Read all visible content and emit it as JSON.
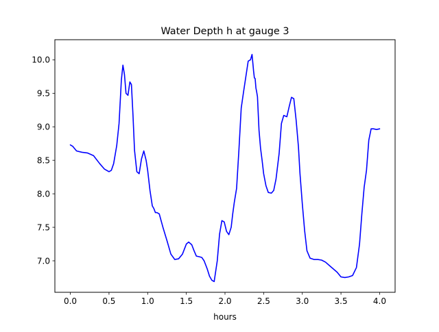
{
  "chart_data": {
    "type": "line",
    "title": "Water Depth h at gauge 3",
    "xlabel": "hours",
    "ylabel": "",
    "xlim": [
      -0.2,
      4.2
    ],
    "ylim": [
      6.53,
      10.3
    ],
    "x_ticks": [
      0.0,
      0.5,
      1.0,
      1.5,
      2.0,
      2.5,
      3.0,
      3.5,
      4.0
    ],
    "x_tick_labels": [
      "0.0",
      "0.5",
      "1.0",
      "1.5",
      "2.0",
      "2.5",
      "3.0",
      "3.5",
      "4.0"
    ],
    "y_ticks": [
      7.0,
      7.5,
      8.0,
      8.5,
      9.0,
      9.5,
      10.0
    ],
    "y_tick_labels": [
      "7.0",
      "7.5",
      "8.0",
      "8.5",
      "9.0",
      "9.5",
      "10.0"
    ],
    "grid": false,
    "legend": "none",
    "series": [
      {
        "color": "#0000ff",
        "x": [
          0.0,
          0.03,
          0.08,
          0.15,
          0.22,
          0.3,
          0.38,
          0.44,
          0.5,
          0.53,
          0.56,
          0.6,
          0.63,
          0.66,
          0.68,
          0.7,
          0.72,
          0.745,
          0.77,
          0.79,
          0.81,
          0.83,
          0.86,
          0.89,
          0.92,
          0.95,
          0.98,
          1.0,
          1.03,
          1.06,
          1.08,
          1.1,
          1.12,
          1.15,
          1.2,
          1.25,
          1.3,
          1.35,
          1.4,
          1.45,
          1.5,
          1.53,
          1.57,
          1.6,
          1.63,
          1.67,
          1.7,
          1.73,
          1.77,
          1.8,
          1.83,
          1.86,
          1.9,
          1.93,
          1.96,
          1.99,
          2.02,
          2.05,
          2.08,
          2.1,
          2.12,
          2.15,
          2.18,
          2.21,
          2.24,
          2.27,
          2.3,
          2.33,
          2.35,
          2.37,
          2.38,
          2.39,
          2.4,
          2.41,
          2.42,
          2.43,
          2.44,
          2.46,
          2.48,
          2.5,
          2.53,
          2.56,
          2.6,
          2.63,
          2.66,
          2.7,
          2.73,
          2.76,
          2.8,
          2.83,
          2.86,
          2.89,
          2.92,
          2.95,
          2.97,
          3.0,
          3.03,
          3.06,
          3.1,
          3.15,
          3.2,
          3.25,
          3.3,
          3.35,
          3.4,
          3.45,
          3.5,
          3.55,
          3.6,
          3.65,
          3.7,
          3.74,
          3.77,
          3.8,
          3.83,
          3.86,
          3.89,
          3.92,
          3.96,
          4.0
        ],
        "values": [
          8.73,
          8.71,
          8.64,
          8.62,
          8.61,
          8.57,
          8.45,
          8.37,
          8.33,
          8.35,
          8.45,
          8.72,
          9.05,
          9.7,
          9.92,
          9.78,
          9.5,
          9.47,
          9.67,
          9.63,
          9.18,
          8.65,
          8.33,
          8.3,
          8.52,
          8.64,
          8.5,
          8.35,
          8.05,
          7.82,
          7.78,
          7.72,
          7.72,
          7.7,
          7.49,
          7.3,
          7.1,
          7.02,
          7.03,
          7.1,
          7.25,
          7.28,
          7.24,
          7.15,
          7.07,
          7.06,
          7.05,
          7.0,
          6.88,
          6.77,
          6.71,
          6.69,
          7.0,
          7.4,
          7.6,
          7.58,
          7.44,
          7.39,
          7.5,
          7.7,
          7.87,
          8.08,
          8.65,
          9.28,
          9.52,
          9.75,
          9.98,
          10.0,
          10.08,
          9.83,
          9.73,
          9.72,
          9.58,
          9.52,
          9.45,
          9.2,
          8.95,
          8.68,
          8.5,
          8.3,
          8.12,
          8.02,
          8.01,
          8.05,
          8.22,
          8.6,
          9.05,
          9.17,
          9.15,
          9.3,
          9.44,
          9.42,
          9.1,
          8.7,
          8.3,
          7.85,
          7.45,
          7.15,
          7.04,
          7.02,
          7.02,
          7.01,
          6.98,
          6.93,
          6.88,
          6.83,
          6.76,
          6.75,
          6.76,
          6.78,
          6.9,
          7.25,
          7.7,
          8.1,
          8.35,
          8.8,
          8.97,
          8.97,
          8.96,
          8.97
        ]
      }
    ]
  }
}
